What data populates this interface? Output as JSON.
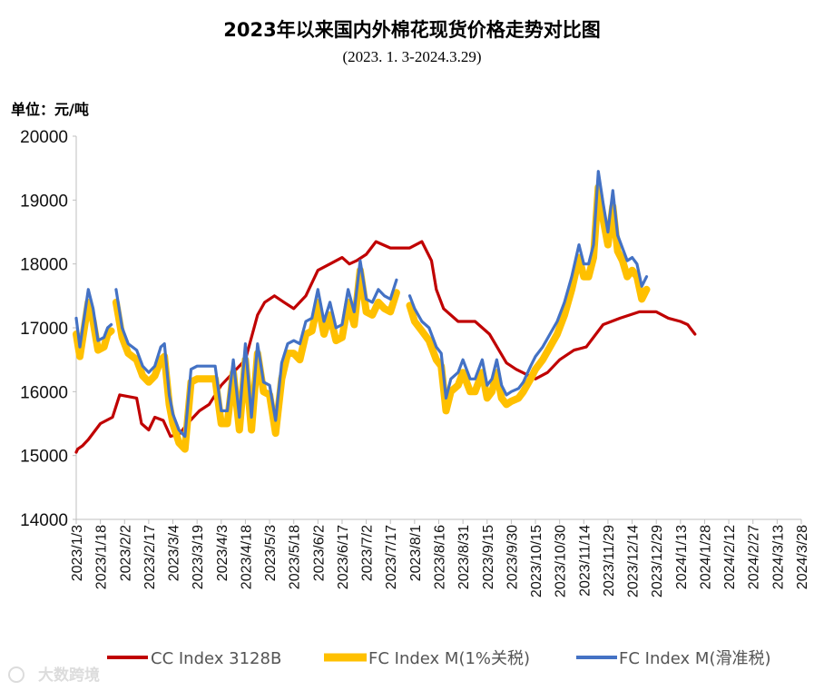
{
  "chart_data": {
    "type": "line",
    "title": "2023年以来国内外棉花现货价格走势对比图",
    "subtitle": "(2023. 1. 3-2024.3.29)",
    "unit_label": "单位：元/吨",
    "ylim": [
      14000,
      20000
    ],
    "yticks": [
      "20000",
      "19000",
      "18000",
      "17000",
      "16000",
      "15000",
      "14000"
    ],
    "x_tick_labels": [
      "2023/1/3",
      "2023/1/18",
      "2023/2/2",
      "2023/2/17",
      "2023/3/4",
      "2023/3/19",
      "2023/4/3",
      "2023/4/18",
      "2023/5/3",
      "2023/5/18",
      "2023/6/2",
      "2023/6/17",
      "2023/7/2",
      "2023/7/17",
      "2023/8/1",
      "2023/8/16",
      "2023/8/31",
      "2023/9/15",
      "2023/9/30",
      "2023/10/15",
      "2023/10/30",
      "2023/11/14",
      "2023/11/29",
      "2023/12/14",
      "2023/12/29",
      "2024/1/13",
      "2024/1/28",
      "2024/2/12",
      "2024/2/27",
      "2024/3/13",
      "2024/3/28"
    ],
    "series": [
      {
        "name": "CC Index 3128B",
        "color": "#C00000",
        "points": [
          [
            0,
            15050
          ],
          [
            0.06,
            15100
          ],
          [
            0.25,
            15150
          ],
          [
            0.5,
            15250
          ],
          [
            1.0,
            15500
          ],
          [
            1.5,
            15600
          ],
          [
            1.8,
            15950
          ],
          [
            2.5,
            15900
          ],
          [
            2.7,
            15500
          ],
          [
            3.0,
            15400
          ],
          [
            3.25,
            15600
          ],
          [
            3.6,
            15550
          ],
          [
            3.9,
            15300
          ],
          [
            4.3,
            15350
          ],
          [
            4.6,
            15500
          ],
          [
            5.1,
            15700
          ],
          [
            5.5,
            15800
          ],
          [
            6.0,
            16100
          ],
          [
            6.5,
            16300
          ],
          [
            7.0,
            16500
          ],
          [
            7.5,
            17200
          ],
          [
            7.8,
            17400
          ],
          [
            8.2,
            17500
          ],
          [
            8.6,
            17400
          ],
          [
            9.0,
            17300
          ],
          [
            9.5,
            17500
          ],
          [
            10.0,
            17900
          ],
          [
            10.5,
            18000
          ],
          [
            11.0,
            18100
          ],
          [
            11.3,
            18000
          ],
          [
            11.6,
            18050
          ],
          [
            12.0,
            18150
          ],
          [
            12.4,
            18350
          ],
          [
            12.7,
            18300
          ],
          [
            13.0,
            18250
          ],
          [
            13.4,
            18250
          ],
          [
            13.8,
            18250
          ],
          [
            14.3,
            18350
          ],
          [
            14.7,
            18050
          ],
          [
            14.9,
            17600
          ],
          [
            15.2,
            17300
          ],
          [
            15.8,
            17100
          ],
          [
            16.5,
            17100
          ],
          [
            17.1,
            16900
          ],
          [
            17.8,
            16450
          ],
          [
            18.2,
            16350
          ],
          [
            19.0,
            16200
          ],
          [
            19.5,
            16300
          ],
          [
            20.0,
            16500
          ],
          [
            20.6,
            16650
          ],
          [
            21.1,
            16700
          ],
          [
            21.8,
            17050
          ],
          [
            22.5,
            17150
          ],
          [
            23.3,
            17250
          ],
          [
            24.0,
            17250
          ],
          [
            24.5,
            17150
          ],
          [
            25.0,
            17100
          ],
          [
            25.3,
            17050
          ],
          [
            25.5,
            16950
          ],
          [
            25.6,
            16900
          ]
        ]
      },
      {
        "name": "FC Index M(1%关税)",
        "color": "#FFC000",
        "points": [
          [
            0,
            16900
          ],
          [
            0.15,
            16550
          ],
          [
            0.5,
            17400
          ],
          [
            0.7,
            17100
          ],
          [
            0.9,
            16650
          ],
          [
            1.15,
            16700
          ],
          [
            1.3,
            16900
          ],
          [
            1.45,
            16950
          ],
          [
            null,
            null
          ],
          [
            1.65,
            17400
          ],
          [
            1.9,
            16850
          ],
          [
            2.15,
            16600
          ],
          [
            2.5,
            16500
          ],
          [
            2.75,
            16250
          ],
          [
            3.0,
            16150
          ],
          [
            3.25,
            16250
          ],
          [
            3.5,
            16500
          ],
          [
            3.65,
            16550
          ],
          [
            3.85,
            15800
          ],
          [
            4.0,
            15500
          ],
          [
            4.25,
            15200
          ],
          [
            4.5,
            15100
          ],
          [
            4.75,
            16150
          ],
          [
            5.0,
            16200
          ],
          [
            5.5,
            16200
          ],
          [
            5.75,
            16200
          ],
          [
            6.0,
            15500
          ],
          [
            6.25,
            15500
          ],
          [
            6.5,
            16300
          ],
          [
            6.75,
            15400
          ],
          [
            7.0,
            16500
          ],
          [
            7.25,
            15400
          ],
          [
            7.5,
            16600
          ],
          [
            7.75,
            16000
          ],
          [
            8.0,
            15950
          ],
          [
            8.25,
            15350
          ],
          [
            8.5,
            16200
          ],
          [
            8.75,
            16600
          ],
          [
            9.0,
            16600
          ],
          [
            9.25,
            16500
          ],
          [
            9.5,
            16900
          ],
          [
            9.75,
            16950
          ],
          [
            10.0,
            17400
          ],
          [
            10.25,
            16900
          ],
          [
            10.5,
            17200
          ],
          [
            10.75,
            16800
          ],
          [
            11.0,
            16850
          ],
          [
            11.25,
            17400
          ],
          [
            11.5,
            17050
          ],
          [
            11.75,
            17900
          ],
          [
            12.0,
            17250
          ],
          [
            12.25,
            17200
          ],
          [
            12.5,
            17400
          ],
          [
            12.75,
            17300
          ],
          [
            13.0,
            17250
          ],
          [
            13.25,
            17550
          ],
          [
            null,
            null
          ],
          [
            13.8,
            17350
          ],
          [
            14.0,
            17100
          ],
          [
            14.3,
            16950
          ],
          [
            14.6,
            16800
          ],
          [
            14.9,
            16500
          ],
          [
            15.1,
            16400
          ],
          [
            15.3,
            15700
          ],
          [
            15.5,
            16000
          ],
          [
            15.8,
            16100
          ],
          [
            16.0,
            16300
          ],
          [
            16.3,
            16000
          ],
          [
            16.5,
            16000
          ],
          [
            16.8,
            16300
          ],
          [
            17.0,
            15900
          ],
          [
            17.2,
            16000
          ],
          [
            17.4,
            16300
          ],
          [
            17.6,
            15900
          ],
          [
            17.8,
            15800
          ],
          [
            18.0,
            15850
          ],
          [
            18.3,
            15900
          ],
          [
            18.5,
            16000
          ],
          [
            18.8,
            16200
          ],
          [
            19.0,
            16350
          ],
          [
            19.3,
            16500
          ],
          [
            19.6,
            16700
          ],
          [
            19.9,
            16900
          ],
          [
            20.2,
            17200
          ],
          [
            20.5,
            17600
          ],
          [
            20.8,
            18100
          ],
          [
            21.0,
            17800
          ],
          [
            21.2,
            17800
          ],
          [
            21.4,
            18100
          ],
          [
            21.6,
            19200
          ],
          [
            21.8,
            18700
          ],
          [
            22.0,
            18300
          ],
          [
            22.2,
            18900
          ],
          [
            22.4,
            18200
          ],
          [
            22.6,
            18050
          ],
          [
            22.8,
            17800
          ],
          [
            23.0,
            17900
          ],
          [
            23.2,
            17800
          ],
          [
            23.4,
            17450
          ],
          [
            23.6,
            17600
          ]
        ]
      },
      {
        "name": "FC Index M(滑准税)",
        "color": "#4472C4",
        "points": [
          [
            0,
            17150
          ],
          [
            0.15,
            16700
          ],
          [
            0.5,
            17600
          ],
          [
            0.7,
            17300
          ],
          [
            0.9,
            16800
          ],
          [
            1.15,
            16850
          ],
          [
            1.3,
            17000
          ],
          [
            1.45,
            17050
          ],
          [
            null,
            null
          ],
          [
            1.65,
            17600
          ],
          [
            1.9,
            17000
          ],
          [
            2.15,
            16750
          ],
          [
            2.5,
            16650
          ],
          [
            2.75,
            16400
          ],
          [
            3.0,
            16300
          ],
          [
            3.25,
            16400
          ],
          [
            3.5,
            16700
          ],
          [
            3.65,
            16750
          ],
          [
            3.85,
            15950
          ],
          [
            4.0,
            15650
          ],
          [
            4.25,
            15400
          ],
          [
            4.5,
            15300
          ],
          [
            4.75,
            16350
          ],
          [
            5.0,
            16400
          ],
          [
            5.5,
            16400
          ],
          [
            5.75,
            16400
          ],
          [
            6.0,
            15700
          ],
          [
            6.25,
            15700
          ],
          [
            6.5,
            16500
          ],
          [
            6.75,
            15600
          ],
          [
            7.0,
            16750
          ],
          [
            7.25,
            15600
          ],
          [
            7.5,
            16750
          ],
          [
            7.75,
            16150
          ],
          [
            8.0,
            16100
          ],
          [
            8.25,
            15550
          ],
          [
            8.5,
            16450
          ],
          [
            8.75,
            16750
          ],
          [
            9.0,
            16800
          ],
          [
            9.25,
            16750
          ],
          [
            9.5,
            17100
          ],
          [
            9.75,
            17150
          ],
          [
            10.0,
            17600
          ],
          [
            10.25,
            17100
          ],
          [
            10.5,
            17400
          ],
          [
            10.75,
            17000
          ],
          [
            11.0,
            17050
          ],
          [
            11.25,
            17600
          ],
          [
            11.5,
            17250
          ],
          [
            11.75,
            18050
          ],
          [
            12.0,
            17450
          ],
          [
            12.25,
            17400
          ],
          [
            12.5,
            17600
          ],
          [
            12.75,
            17500
          ],
          [
            13.0,
            17450
          ],
          [
            13.25,
            17750
          ],
          [
            null,
            null
          ],
          [
            13.8,
            17500
          ],
          [
            14.0,
            17300
          ],
          [
            14.3,
            17100
          ],
          [
            14.6,
            17000
          ],
          [
            14.9,
            16700
          ],
          [
            15.1,
            16600
          ],
          [
            15.3,
            15900
          ],
          [
            15.5,
            16200
          ],
          [
            15.8,
            16300
          ],
          [
            16.0,
            16500
          ],
          [
            16.3,
            16200
          ],
          [
            16.5,
            16200
          ],
          [
            16.8,
            16500
          ],
          [
            17.0,
            16100
          ],
          [
            17.2,
            16200
          ],
          [
            17.4,
            16500
          ],
          [
            17.6,
            16100
          ],
          [
            17.8,
            15950
          ],
          [
            18.0,
            16000
          ],
          [
            18.3,
            16050
          ],
          [
            18.5,
            16150
          ],
          [
            18.8,
            16400
          ],
          [
            19.0,
            16550
          ],
          [
            19.3,
            16700
          ],
          [
            19.6,
            16900
          ],
          [
            19.9,
            17100
          ],
          [
            20.2,
            17400
          ],
          [
            20.5,
            17800
          ],
          [
            20.8,
            18300
          ],
          [
            21.0,
            18000
          ],
          [
            21.2,
            18000
          ],
          [
            21.4,
            18300
          ],
          [
            21.6,
            19450
          ],
          [
            21.8,
            18950
          ],
          [
            22.0,
            18500
          ],
          [
            22.2,
            19150
          ],
          [
            22.4,
            18450
          ],
          [
            22.6,
            18250
          ],
          [
            22.8,
            18050
          ],
          [
            23.0,
            18100
          ],
          [
            23.2,
            18000
          ],
          [
            23.4,
            17650
          ],
          [
            23.6,
            17800
          ]
        ]
      }
    ]
  },
  "watermark": "大数跨境"
}
